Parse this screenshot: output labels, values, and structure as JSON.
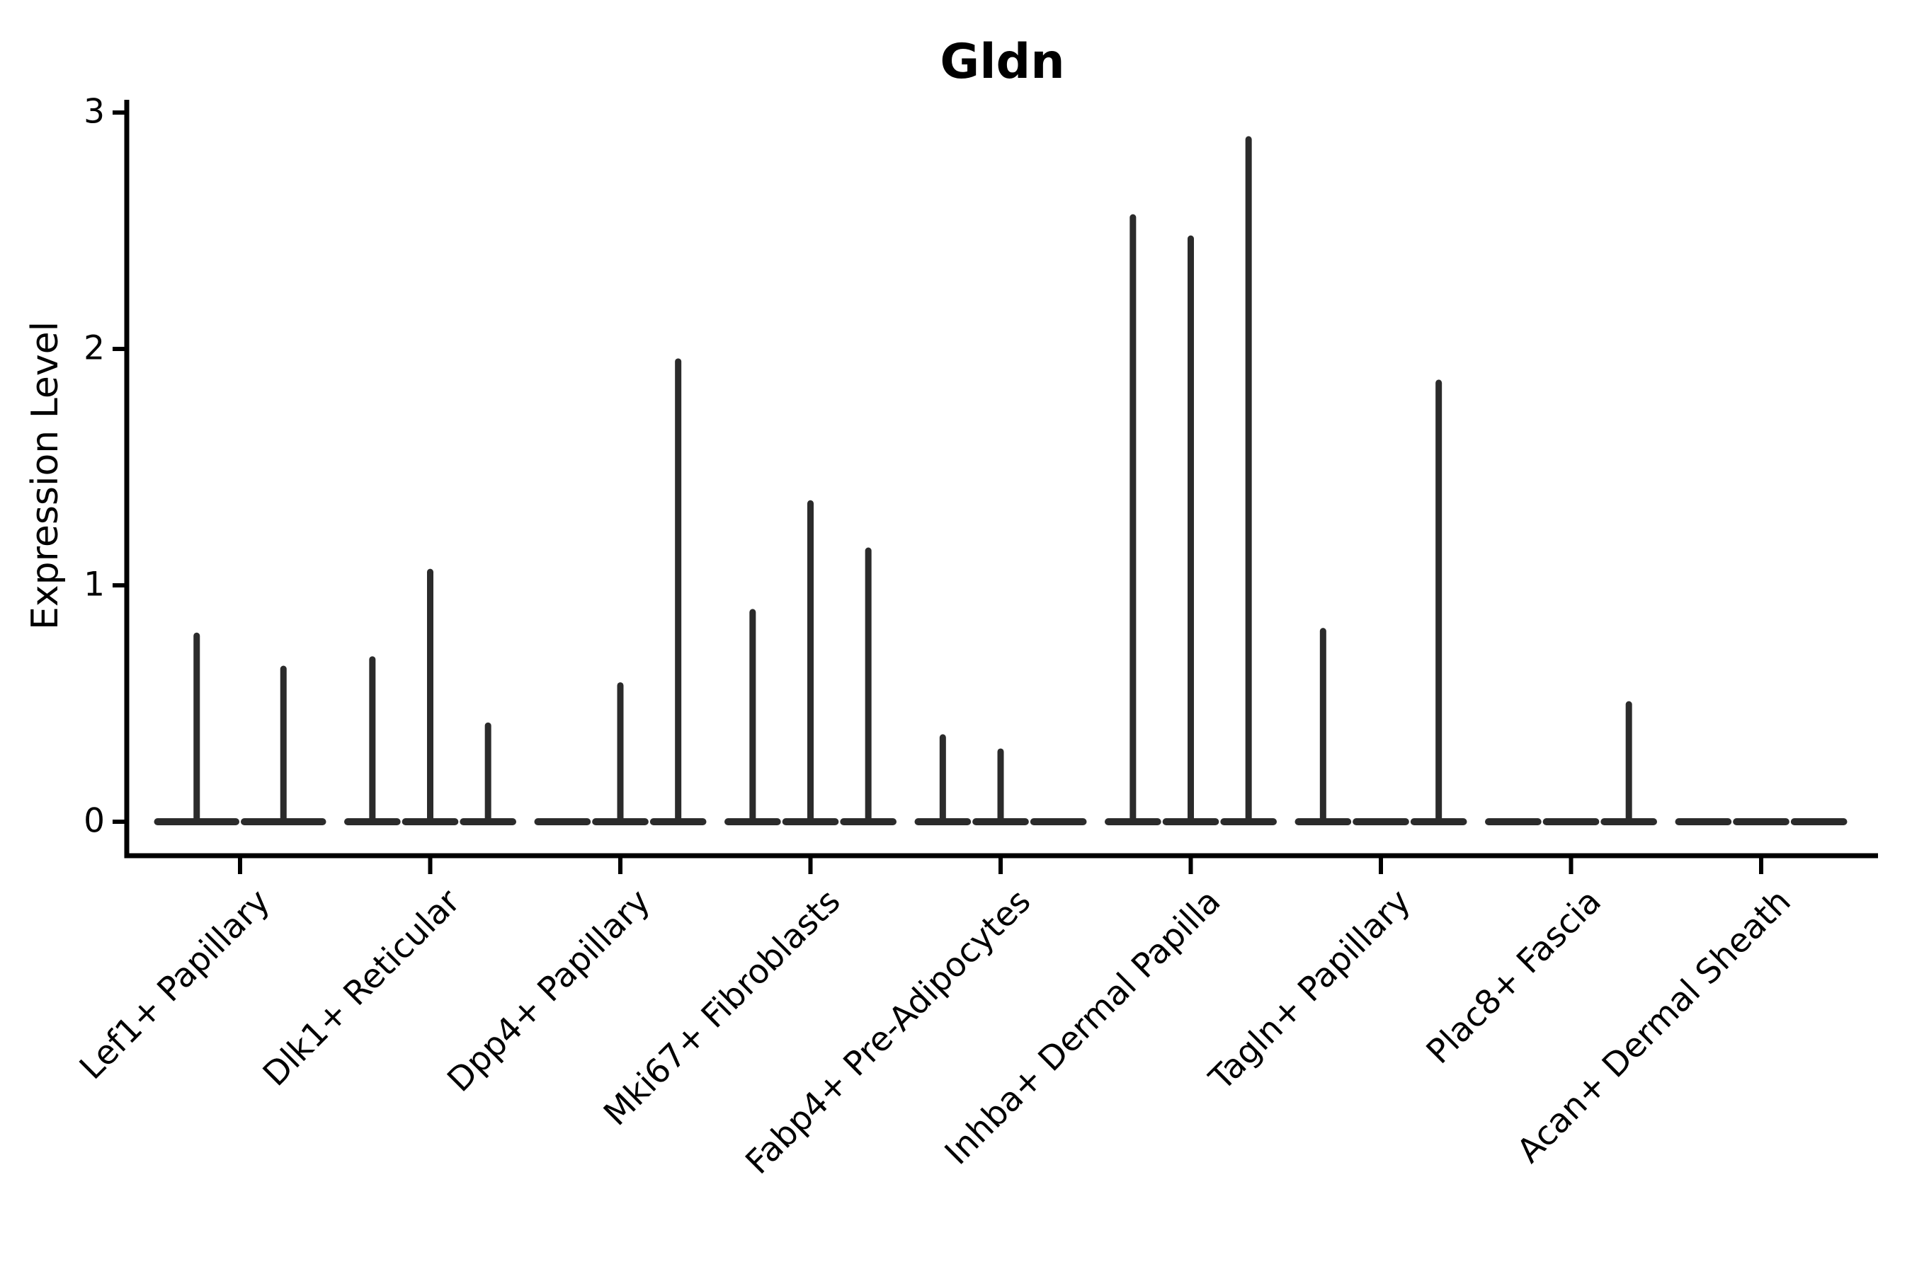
{
  "title": "Gldn",
  "ylabel": "Expression Level",
  "chart_data": {
    "type": "violin",
    "title": "Gldn",
    "xlabel": "",
    "ylabel": "Expression Level",
    "yticks": [
      0,
      1,
      2,
      3
    ],
    "ylim": [
      -0.15,
      3.2
    ],
    "grid": false,
    "legend_position": "none",
    "categories": [
      "Lef1+ Papillary",
      "Dlk1+ Reticular",
      "Dpp4+ Papillary",
      "Mki67+ Fibroblasts",
      "Fabp4+ Pre-Adipocytes",
      "Inhba+ Dermal Papilla",
      "Tagln+ Papillary",
      "Plac8+ Fascia",
      "Acan+ Dermal Sheath"
    ],
    "violin_note": "Each category contains 2-3 very thin sub-violins collapsed at 0 with a single narrow spike; value listed is the spike peak (max Expression Level).",
    "violin_peaks": [
      [
        0.8,
        0.66
      ],
      [
        0.7,
        1.07,
        0.42
      ],
      [
        0.0,
        0.59,
        1.96
      ],
      [
        0.9,
        1.36,
        1.16
      ],
      [
        0.37,
        0.31,
        0.0
      ],
      [
        2.57,
        2.48,
        2.9
      ],
      [
        0.82,
        0.0,
        1.87
      ],
      [
        0.0,
        0.0,
        0.51
      ],
      [
        0.0,
        0.0,
        0.0
      ]
    ],
    "colors": {
      "violin": "#2b2b2b",
      "axis": "#000000",
      "text": "#000000",
      "background": "#ffffff"
    }
  }
}
